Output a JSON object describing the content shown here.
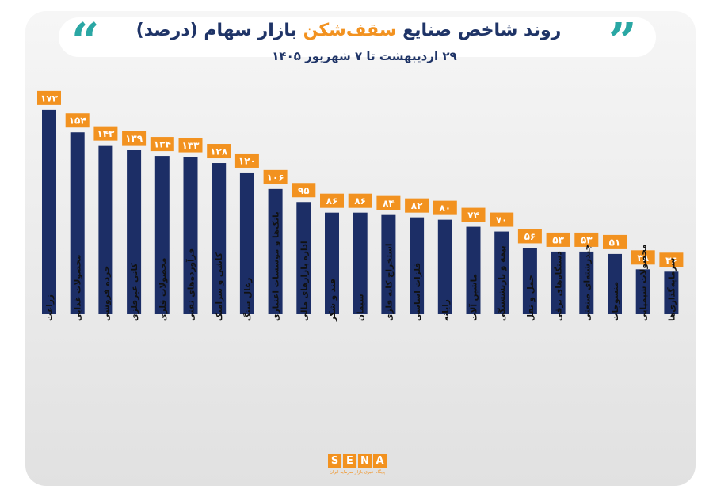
{
  "header": {
    "title_part1": "روند شاخص صنایع ",
    "title_highlight": "سقف‌شکن",
    "title_part2": " بازار سهام (درصد)",
    "subtitle": "۲۹ اردیبهشت تا ۷ شهریور ۱۴۰۵",
    "quote_left_icon": "quote-open-icon",
    "quote_right_icon": "quote-close-icon"
  },
  "logo": {
    "letters": [
      "S",
      "E",
      "N",
      "A"
    ],
    "tagline": "پایگاه خبری بازار سرمایه ایران"
  },
  "colors": {
    "bar": "#1c2e66",
    "label_bg": "#f29220",
    "label_text": "#ffffff",
    "title": "#1f3467",
    "accent": "#f29220",
    "quote": "#2aa7a4"
  },
  "chart_data": {
    "type": "bar",
    "title": "روند شاخص صنایع سقف‌شکن بازار سهام (درصد)",
    "subtitle": "۲۹ اردیبهشت تا ۷ شهریور ۱۴۰۵",
    "categories": [
      "زراعت",
      "محصولات غذایی",
      "خرده فروشی",
      "کانی غیرفلزی",
      "محصولات فلزی",
      "فرآورده‌های نفتی",
      "کاشی و سرامیک",
      "زغال سنگ",
      "بانک‌ها و موسسات اعتباری",
      "اداره بازارهای مالی",
      "قند و شکر",
      "سیمان",
      "استخراج کانه فلزی",
      "فلزات اساسی",
      "رایانه",
      "ماشین آلات",
      "بیمه و بازنشستگی",
      "حمل و نقل",
      "دستگاه‌های برقی",
      "چندرشته‌ای صنعتی",
      "منسوجات",
      "محصولات شیمیایی",
      "سرمایه‌گذاری‌ها"
    ],
    "values": [
      173,
      154,
      143,
      139,
      134,
      133,
      128,
      120,
      106,
      95,
      86,
      86,
      84,
      82,
      80,
      74,
      70,
      56,
      53,
      53,
      51,
      38,
      36
    ],
    "value_labels": [
      "۱۷۳",
      "۱۵۴",
      "۱۴۳",
      "۱۳۹",
      "۱۳۴",
      "۱۳۳",
      "۱۲۸",
      "۱۲۰",
      "۱۰۶",
      "۹۵",
      "۸۶",
      "۸۶",
      "۸۴",
      "۸۲",
      "۸۰",
      "۷۴",
      "۷۰",
      "۵۶",
      "۵۳",
      "۵۳",
      "۵۱",
      "۳۸",
      "۳۶"
    ],
    "xlabel": "",
    "ylabel": "",
    "grid": false,
    "legend": "none"
  }
}
